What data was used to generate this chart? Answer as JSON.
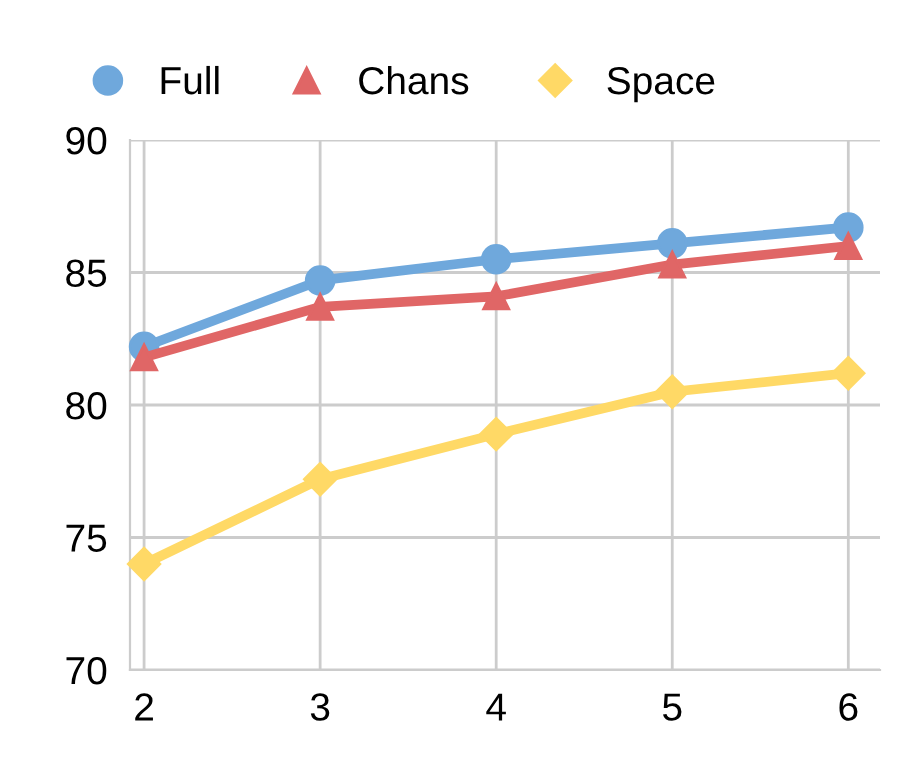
{
  "chart_data": {
    "type": "line",
    "x": [
      2,
      3,
      4,
      5,
      6
    ],
    "series": [
      {
        "name": "Full",
        "color": "#6fa8dc",
        "marker": "circle",
        "values": [
          82.2,
          84.7,
          85.5,
          86.1,
          86.7
        ]
      },
      {
        "name": "Chans",
        "color": "#e06666",
        "marker": "triangle",
        "values": [
          81.8,
          83.7,
          84.1,
          85.3,
          86.0
        ]
      },
      {
        "name": "Space",
        "color": "#ffd966",
        "marker": "diamond",
        "values": [
          74.0,
          77.2,
          78.9,
          80.5,
          81.2
        ]
      }
    ],
    "xlim": [
      1.92,
      6.18
    ],
    "xticks": [
      2,
      3,
      4,
      5,
      6
    ],
    "ylim": [
      70,
      90
    ],
    "yticks": [
      70,
      75,
      80,
      85,
      90
    ],
    "grid": true,
    "legend": "top",
    "line_style": "solid"
  }
}
